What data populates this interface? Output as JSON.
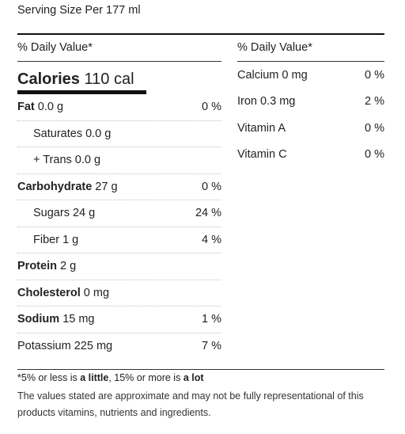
{
  "serving": "Serving Size Per 177 ml",
  "daily_value_header": "% Daily Value*",
  "calories": {
    "label": "Calories",
    "value": "110 cal"
  },
  "nutrients": [
    {
      "bold": "Fat",
      "rest": " 0.0 g",
      "pct": "0 %",
      "indent": false
    },
    {
      "bold": "",
      "rest": "Saturates 0.0 g",
      "pct": "",
      "indent": true
    },
    {
      "bold": "",
      "rest": "+ Trans 0.0 g",
      "pct": "",
      "indent": true
    },
    {
      "bold": "Carbohydrate",
      "rest": " 27 g",
      "pct": "0 %",
      "indent": false
    },
    {
      "bold": "",
      "rest": "Sugars 24 g",
      "pct": "24 %",
      "indent": true
    },
    {
      "bold": "",
      "rest": "Fiber 1 g",
      "pct": "4 %",
      "indent": true
    },
    {
      "bold": "Protein",
      "rest": " 2 g",
      "pct": "",
      "indent": false
    },
    {
      "bold": "Cholesterol",
      "rest": " 0 mg",
      "pct": "",
      "indent": false
    },
    {
      "bold": "Sodium",
      "rest": " 15 mg",
      "pct": "1 %",
      "indent": false
    },
    {
      "bold": "",
      "rest": "Potassium 225 mg",
      "pct": "7 %",
      "indent": false
    }
  ],
  "vitamins": [
    {
      "name": "Calcium 0 mg",
      "pct": "0 %"
    },
    {
      "name": "Iron 0.3 mg",
      "pct": "2 %"
    },
    {
      "name": "Vitamin A",
      "pct": "0 %"
    },
    {
      "name": "Vitamin C",
      "pct": "0 %"
    }
  ],
  "footnote": {
    "prefix": "*5% or less is ",
    "little": "a little",
    "middle": ", 15% or more is ",
    "lot": "a lot"
  },
  "disclaimer": "The values stated are approximate and may not be fully representational of this products vitamins, nutrients and ingredients."
}
